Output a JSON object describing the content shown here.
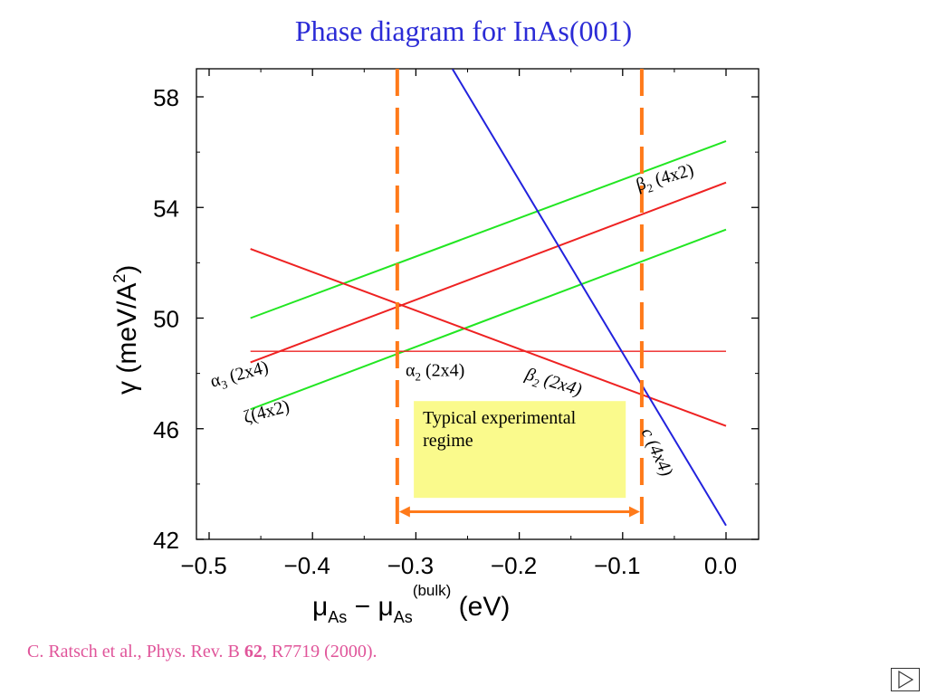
{
  "title": "Phase diagram for InAs(001)",
  "citation": {
    "prefix": "C. Ratsch et al., Phys. Rev. B ",
    "volume": "62",
    "suffix": ", R7719 (2000)."
  },
  "nav_icon": "play-forward-icon",
  "colors": {
    "title": "#2b2bd6",
    "citation": "#e0559a",
    "green": "#22e622",
    "red": "#ee2222",
    "blue": "#2222dd",
    "orange": "#ff7a1a",
    "regime_box": "#fafa8c"
  },
  "chart_data": {
    "type": "line",
    "xlabel": "μAs − μAs(bulk) (eV)",
    "ylabel": "γ (meV/A²)",
    "xlim": [
      -0.5,
      0.0
    ],
    "ylim": [
      42,
      58
    ],
    "x_ticks": [
      "−0.5",
      "−0.4",
      "−0.3",
      "−0.2",
      "−0.1",
      "0.0"
    ],
    "y_ticks": [
      "58",
      "54",
      "50",
      "46",
      "42"
    ],
    "x_tick_values": [
      -0.5,
      -0.4,
      -0.3,
      -0.2,
      -0.1,
      0.0
    ],
    "y_tick_values": [
      58,
      54,
      50,
      46,
      42
    ],
    "series": [
      {
        "color": "green",
        "x": [
          -0.46,
          0.0
        ],
        "y": [
          50.0,
          56.4
        ]
      },
      {
        "color": "green",
        "x": [
          -0.46,
          0.0
        ],
        "y": [
          46.7,
          53.2
        ]
      },
      {
        "color": "red",
        "x": [
          -0.46,
          0.0
        ],
        "y": [
          48.4,
          54.9
        ]
      },
      {
        "color": "red",
        "x": [
          -0.46,
          0.0
        ],
        "y": [
          52.5,
          46.1
        ]
      },
      {
        "color": "red",
        "x": [
          -0.46,
          0.0
        ],
        "y": [
          48.8,
          48.8
        ]
      },
      {
        "color": "blue",
        "x": [
          -0.2645,
          0.0
        ],
        "y": [
          59.0,
          42.5
        ]
      }
    ],
    "vertical_lines": [
      -0.318,
      -0.0815
    ],
    "phase_labels": [
      {
        "greek": "α",
        "sub": "3",
        "text": " (2x4)",
        "x": -0.497,
        "y": 47.5,
        "angle": -15
      },
      {
        "greek": "ζ",
        "sub": "",
        "text": "(4x2)",
        "x": -0.465,
        "y": 46.2,
        "angle": -15
      },
      {
        "greek": "α",
        "sub": "2",
        "text": " (2x4)",
        "x": -0.31,
        "y": 47.9,
        "angle": 0
      },
      {
        "greek": "β",
        "sub": "2",
        "text": " (2x4)",
        "x": -0.195,
        "y": 47.8,
        "angle": 17,
        "italic": true
      },
      {
        "greek": "β",
        "sub": "2",
        "text": " (4x2)",
        "x": -0.085,
        "y": 54.6,
        "angle": -16
      },
      {
        "greek": "c",
        "sub": "",
        "text": " (4x4)",
        "x": -0.082,
        "y": 45.9,
        "angle": 65,
        "italic": true
      }
    ],
    "annotation": {
      "line1": "Typical experimental",
      "line2": "regime",
      "x_from": -0.318,
      "x_to": -0.0815,
      "box_x": [
        -0.302,
        -0.097
      ],
      "box_y": [
        43.5,
        47.0
      ],
      "arrow_y": 43.0
    }
  }
}
